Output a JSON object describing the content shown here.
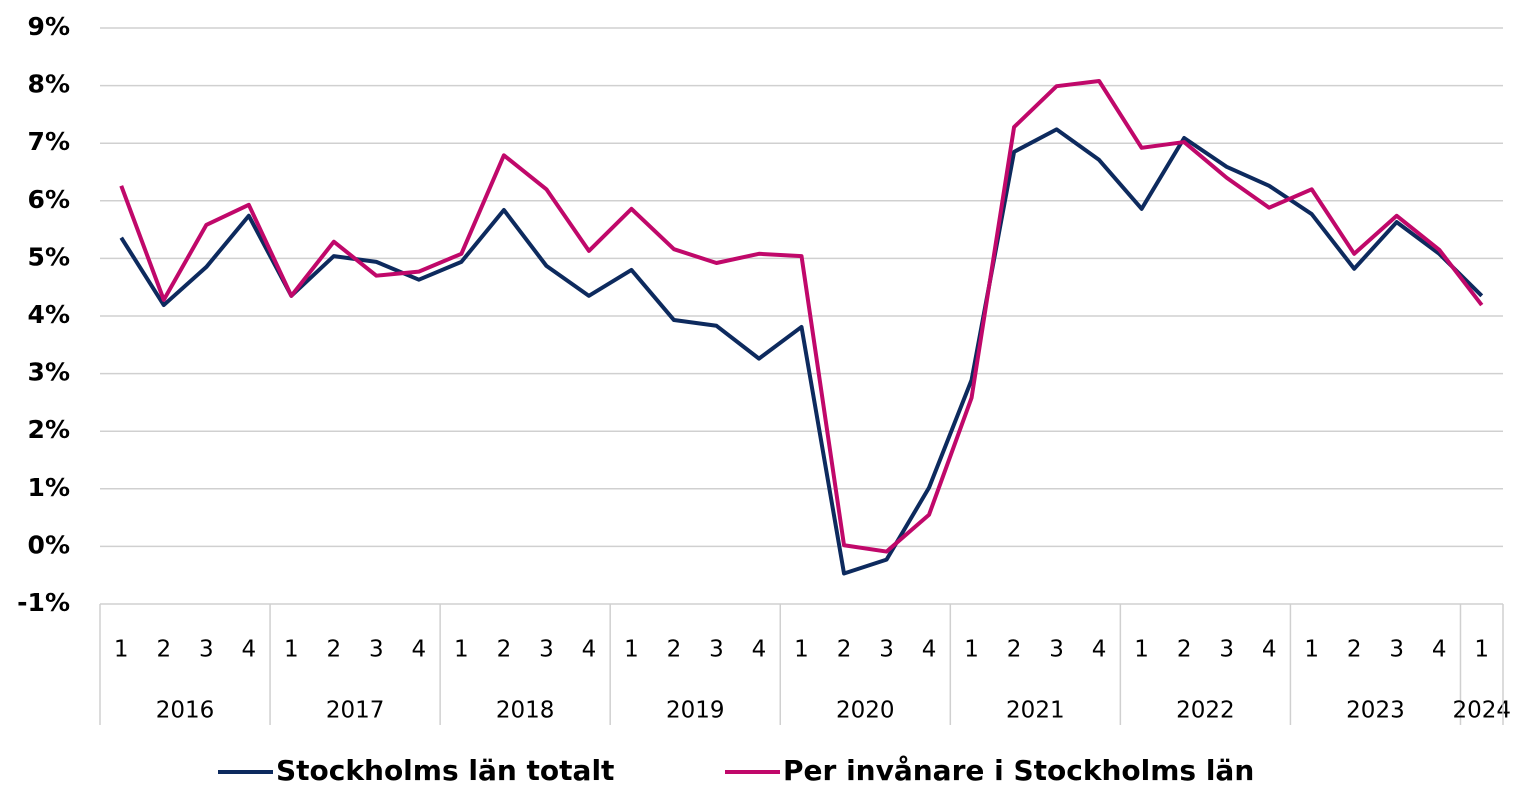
{
  "chart_data": {
    "type": "line",
    "categories": [
      "1",
      "2",
      "3",
      "4",
      "1",
      "2",
      "3",
      "4",
      "1",
      "2",
      "3",
      "4",
      "1",
      "2",
      "3",
      "4",
      "1",
      "2",
      "3",
      "4",
      "1",
      "2",
      "3",
      "4",
      "1",
      "2",
      "3",
      "4",
      "1",
      "2",
      "3",
      "4",
      "1"
    ],
    "year_groups": [
      "2016",
      "2017",
      "2018",
      "2019",
      "2020",
      "2021",
      "2022",
      "2023",
      "2024"
    ],
    "series": [
      {
        "name": "Stockholms län totalt",
        "color": "#0d2a5e",
        "values": [
          5.36,
          4.19,
          4.85,
          5.74,
          4.35,
          5.04,
          4.94,
          4.63,
          4.94,
          5.84,
          4.87,
          4.35,
          4.8,
          3.93,
          3.83,
          3.26,
          3.81,
          -0.47,
          -0.23,
          1.02,
          2.89,
          6.85,
          7.24,
          6.71,
          5.86,
          7.09,
          6.59,
          6.26,
          5.77,
          4.82,
          5.63,
          5.08,
          4.35
        ]
      },
      {
        "name": "Per invånare i Stockholms län",
        "color": "#c0086a",
        "values": [
          6.26,
          4.28,
          5.58,
          5.93,
          4.35,
          5.29,
          4.7,
          4.77,
          5.08,
          6.79,
          6.2,
          5.13,
          5.86,
          5.16,
          4.92,
          5.08,
          5.04,
          0.02,
          -0.09,
          0.55,
          2.58,
          7.28,
          7.99,
          8.08,
          6.92,
          7.02,
          6.4,
          5.88,
          6.2,
          5.08,
          5.74,
          5.15,
          4.19
        ]
      }
    ],
    "ylim": [
      -1,
      9
    ],
    "yticks": [
      {
        "value": -1,
        "label": "-1%"
      },
      {
        "value": 0,
        "label": "0%"
      },
      {
        "value": 1,
        "label": "1%"
      },
      {
        "value": 2,
        "label": "2%"
      },
      {
        "value": 3,
        "label": "3%"
      },
      {
        "value": 4,
        "label": "4%"
      },
      {
        "value": 5,
        "label": "5%"
      },
      {
        "value": 6,
        "label": "6%"
      },
      {
        "value": 7,
        "label": "7%"
      },
      {
        "value": 8,
        "label": "8%"
      },
      {
        "value": 9,
        "label": "9%"
      }
    ],
    "grid": true,
    "legend": "bottom"
  }
}
